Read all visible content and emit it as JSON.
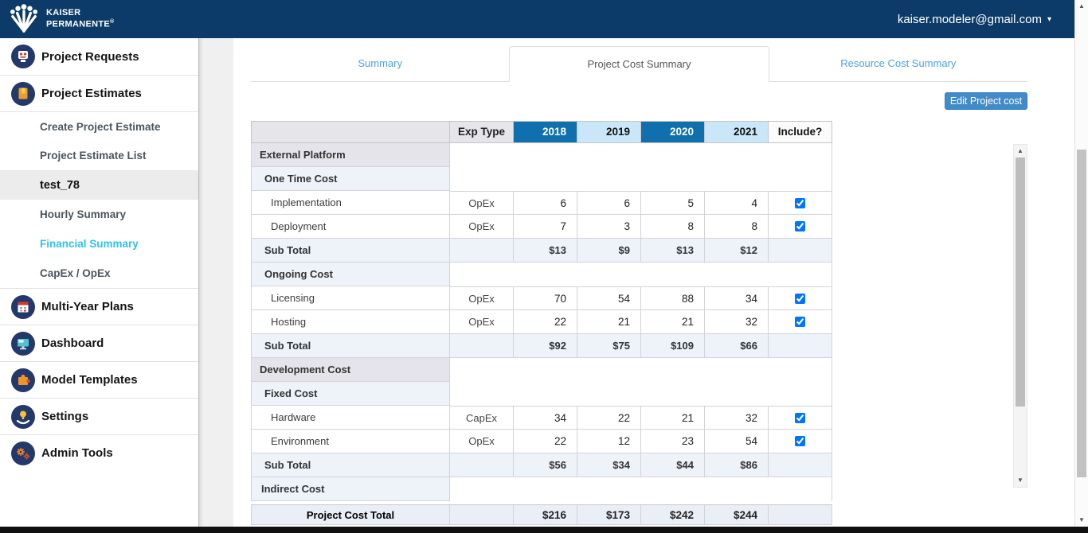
{
  "topbar": {
    "brand": {
      "line1": "KAISER",
      "line2": "PERMANENTE",
      "reg": "®"
    },
    "user_email": "kaiser.modeler@gmail.com",
    "caret_icon": "▾"
  },
  "sidebar": {
    "items": [
      {
        "label": "Project Requests",
        "type": "main",
        "icon": "project-requests-icon"
      },
      {
        "label": "Project Estimates",
        "type": "main",
        "icon": "project-estimates-icon"
      },
      {
        "label": "Create Project Estimate",
        "type": "sub"
      },
      {
        "label": "Project Estimate List",
        "type": "sub"
      },
      {
        "label": "test_78",
        "type": "sub",
        "selected": true
      },
      {
        "label": "Hourly Summary",
        "type": "sub"
      },
      {
        "label": "Financial Summary",
        "type": "sub",
        "accent": true
      },
      {
        "label": "CapEx / OpEx",
        "type": "sub"
      },
      {
        "label": "Multi-Year Plans",
        "type": "main",
        "icon": "multi-year-plans-icon"
      },
      {
        "label": "Dashboard",
        "type": "main",
        "icon": "dashboard-icon"
      },
      {
        "label": "Model Templates",
        "type": "main",
        "icon": "model-templates-icon"
      },
      {
        "label": "Settings",
        "type": "main",
        "icon": "settings-icon"
      },
      {
        "label": "Admin Tools",
        "type": "main",
        "icon": "admin-tools-icon"
      }
    ]
  },
  "tabs": [
    {
      "label": "Summary",
      "active": false
    },
    {
      "label": "Project Cost Summary",
      "active": true
    },
    {
      "label": "Resource Cost Summary",
      "active": false
    }
  ],
  "toolbar": {
    "edit_button": "Edit Project cost"
  },
  "cost_table": {
    "headers": {
      "row_label": "",
      "exp_type": "Exp Type",
      "years": [
        "2018",
        "2019",
        "2020",
        "2021"
      ],
      "include": "Include?"
    },
    "rows": [
      {
        "type": "section1",
        "label": "External Platform"
      },
      {
        "type": "section2",
        "label": "One Time Cost"
      },
      {
        "type": "data",
        "label": "Implementation",
        "exp": "OpEx",
        "values": [
          "6",
          "6",
          "5",
          "4"
        ],
        "include": true
      },
      {
        "type": "data",
        "label": "Deployment",
        "exp": "OpEx",
        "values": [
          "7",
          "3",
          "8",
          "8"
        ],
        "include": true
      },
      {
        "type": "subtotal",
        "label": "Sub Total",
        "values": [
          "$13",
          "$9",
          "$13",
          "$12"
        ]
      },
      {
        "type": "section2",
        "label": "Ongoing Cost"
      },
      {
        "type": "data",
        "label": "Licensing",
        "exp": "OpEx",
        "values": [
          "70",
          "54",
          "88",
          "34"
        ],
        "include": true
      },
      {
        "type": "data",
        "label": "Hosting",
        "exp": "OpEx",
        "values": [
          "22",
          "21",
          "21",
          "32"
        ],
        "include": true
      },
      {
        "type": "subtotal",
        "label": "Sub Total",
        "values": [
          "$92",
          "$75",
          "$109",
          "$66"
        ]
      },
      {
        "type": "section1",
        "label": "Development Cost"
      },
      {
        "type": "section2",
        "label": "Fixed Cost"
      },
      {
        "type": "data",
        "label": "Hardware",
        "exp": "CapEx",
        "values": [
          "34",
          "22",
          "21",
          "32"
        ],
        "include": true
      },
      {
        "type": "data",
        "label": "Environment",
        "exp": "OpEx",
        "values": [
          "22",
          "12",
          "23",
          "54"
        ],
        "include": true
      },
      {
        "type": "subtotal",
        "label": "Sub Total",
        "values": [
          "$56",
          "$34",
          "$44",
          "$86"
        ]
      },
      {
        "type": "section1-light",
        "label": "Indirect Cost"
      }
    ],
    "footer": {
      "label": "Project Cost Total",
      "values": [
        "$216",
        "$173",
        "$242",
        "$244"
      ]
    }
  },
  "scrollbars": {
    "up_icon": "▲",
    "down_icon": "▼"
  },
  "colors": {
    "topbar_blue": "#0d3b69",
    "year_dark_blue": "#1070ad",
    "year_light_blue": "#c9e7f9",
    "tab_link_blue": "#4aa3df",
    "sidebar_accent_cyan": "#2ec2f0",
    "edit_button_blue": "#428bca",
    "section_gray": "#e4e4ea",
    "section_light_blue": "#eef2f9",
    "footer_row_blue": "#e9eef7"
  }
}
